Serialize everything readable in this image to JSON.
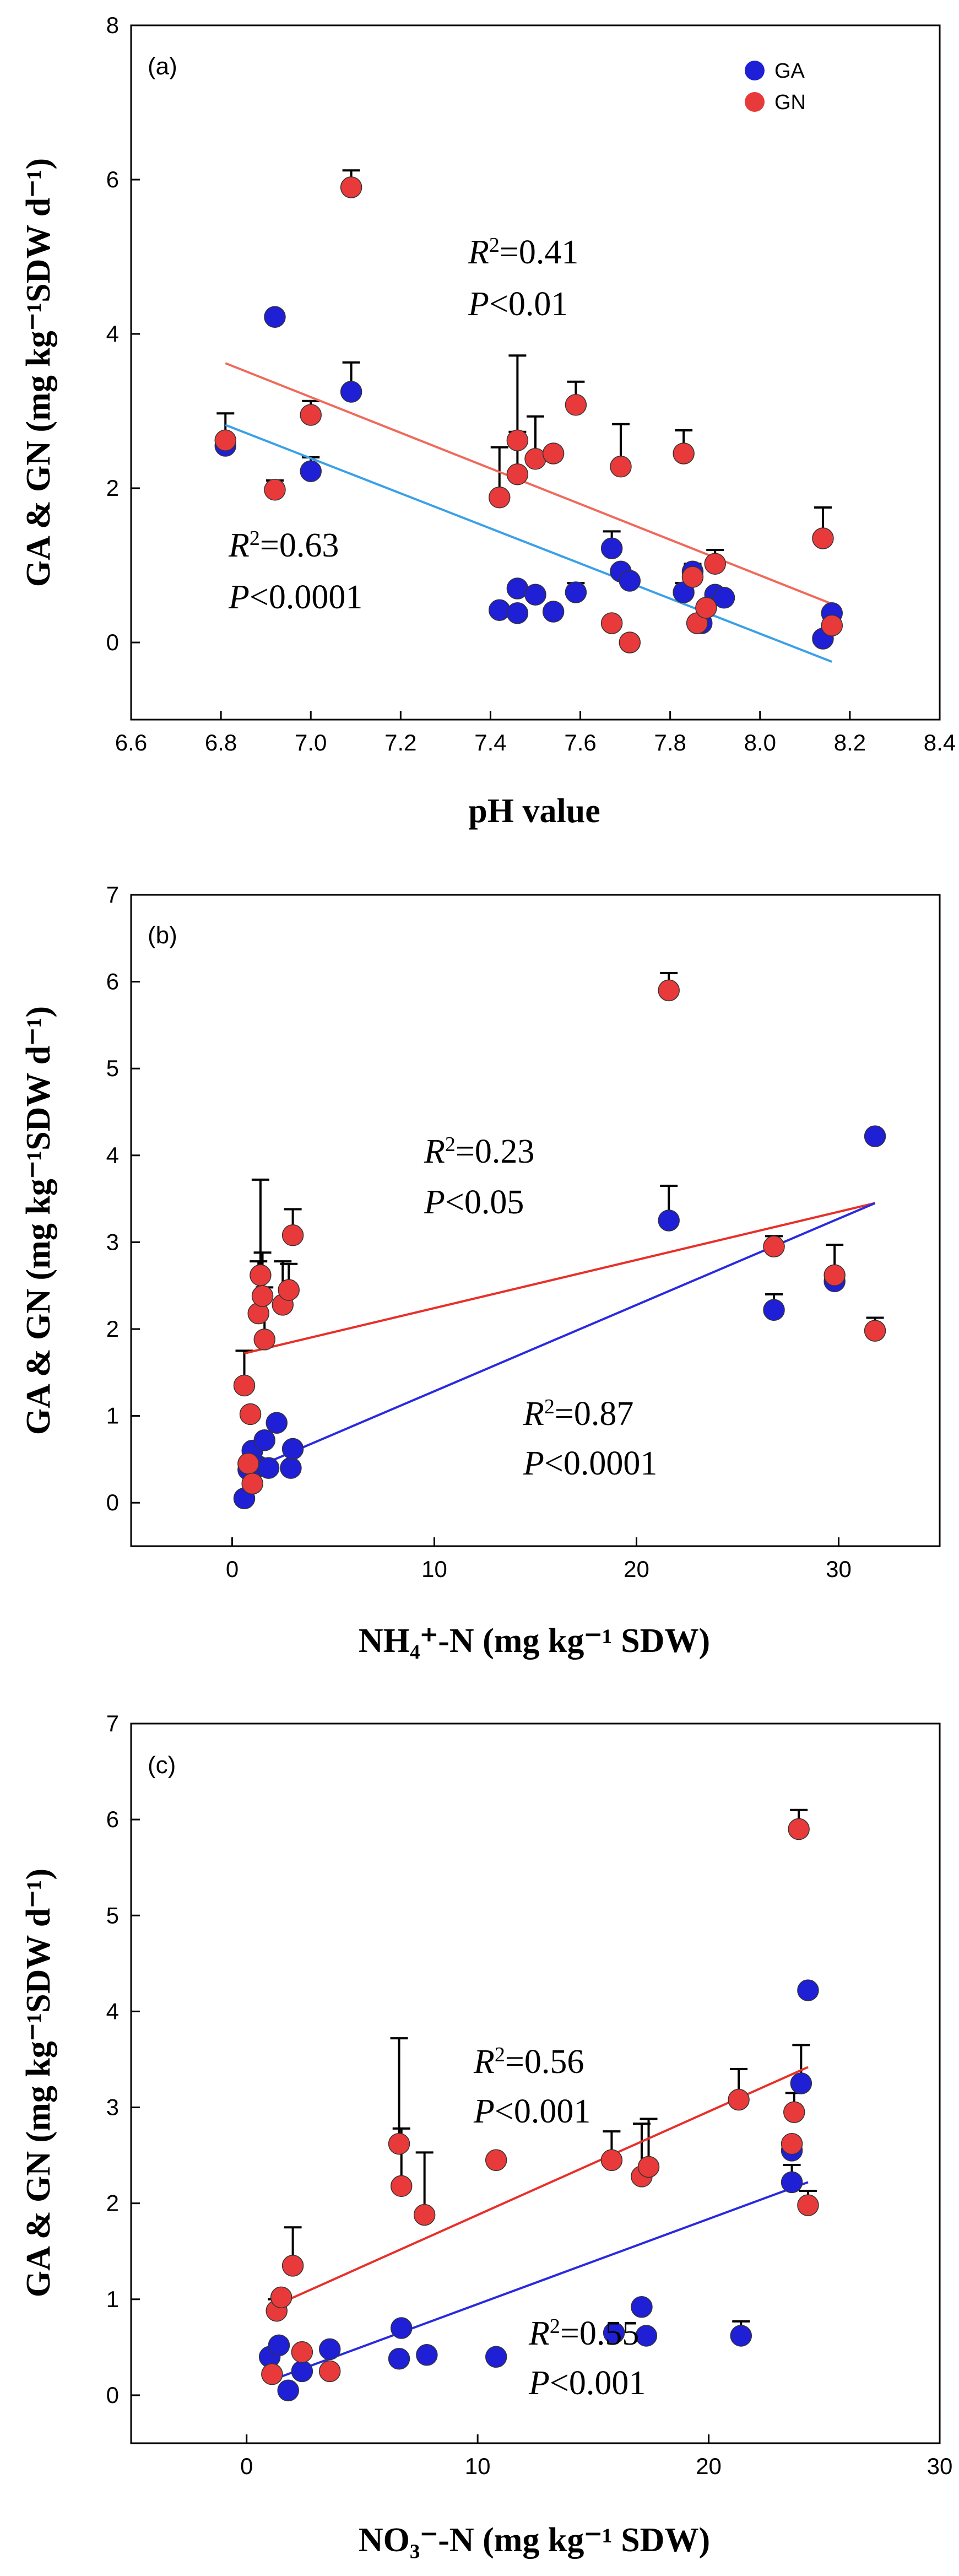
{
  "chart_data": [
    {
      "type": "scatter",
      "panel": "(a)",
      "xlabel": "pH value",
      "ylabel": "GA & GN (mg kg⁻¹SDW d⁻¹)",
      "xlim": [
        6.6,
        8.4
      ],
      "ylim": [
        -1,
        8
      ],
      "xticks": [
        "6.6",
        "6.8",
        "7.0",
        "7.2",
        "7.4",
        "7.6",
        "7.8",
        "8.0",
        "8.2",
        "8.4"
      ],
      "yticks": [
        "0",
        "2",
        "4",
        "6",
        "8"
      ],
      "legend": [
        {
          "name": "GA",
          "color": "#1f1fd6"
        },
        {
          "name": "GN",
          "color": "#e83a3a"
        }
      ],
      "legend_position": "top-right",
      "series": [
        {
          "name": "GA",
          "color": "#1f1fd6",
          "points": [
            {
              "x": 6.81,
              "y": 2.55,
              "err": 0.0
            },
            {
              "x": 6.92,
              "y": 4.22,
              "err": 0.0
            },
            {
              "x": 7.0,
              "y": 2.22,
              "err": 0.18
            },
            {
              "x": 7.09,
              "y": 3.25,
              "err": 0.38
            },
            {
              "x": 7.42,
              "y": 0.42,
              "err": 0.0
            },
            {
              "x": 7.46,
              "y": 0.38,
              "err": 0.0
            },
            {
              "x": 7.46,
              "y": 0.7,
              "err": 0.0
            },
            {
              "x": 7.5,
              "y": 0.62,
              "err": 0.0
            },
            {
              "x": 7.54,
              "y": 0.4,
              "err": 0.0
            },
            {
              "x": 7.59,
              "y": 0.65,
              "err": 0.12
            },
            {
              "x": 7.67,
              "y": 1.22,
              "err": 0.22
            },
            {
              "x": 7.69,
              "y": 0.92,
              "err": 0.0
            },
            {
              "x": 7.71,
              "y": 0.8,
              "err": 0.0
            },
            {
              "x": 7.83,
              "y": 0.65,
              "err": 0.12
            },
            {
              "x": 7.85,
              "y": 0.92,
              "err": 0.1
            },
            {
              "x": 7.87,
              "y": 0.25,
              "err": 0.0
            },
            {
              "x": 7.9,
              "y": 0.62,
              "err": 0.0
            },
            {
              "x": 7.92,
              "y": 0.58,
              "err": 0.0
            },
            {
              "x": 8.14,
              "y": 0.05,
              "err": 0.0
            },
            {
              "x": 8.16,
              "y": 0.38,
              "err": 0.0
            }
          ]
        },
        {
          "name": "GN",
          "color": "#e83a3a",
          "points": [
            {
              "x": 6.81,
              "y": 2.62,
              "err": 0.35
            },
            {
              "x": 6.92,
              "y": 1.98,
              "err": 0.12
            },
            {
              "x": 7.0,
              "y": 2.95,
              "err": 0.18
            },
            {
              "x": 7.09,
              "y": 5.9,
              "err": 0.22
            },
            {
              "x": 7.42,
              "y": 1.88,
              "err": 0.65
            },
            {
              "x": 7.46,
              "y": 2.62,
              "err": 1.1
            },
            {
              "x": 7.46,
              "y": 2.18,
              "err": 0.55
            },
            {
              "x": 7.5,
              "y": 2.38,
              "err": 0.55
            },
            {
              "x": 7.54,
              "y": 2.45,
              "err": 0.0
            },
            {
              "x": 7.59,
              "y": 3.08,
              "err": 0.3
            },
            {
              "x": 7.67,
              "y": 0.25,
              "err": 0.0
            },
            {
              "x": 7.69,
              "y": 2.28,
              "err": 0.55
            },
            {
              "x": 7.71,
              "y": 0.0,
              "err": 0.0
            },
            {
              "x": 7.83,
              "y": 2.45,
              "err": 0.3
            },
            {
              "x": 7.85,
              "y": 0.85,
              "err": 0.0
            },
            {
              "x": 7.86,
              "y": 0.25,
              "err": 0.0
            },
            {
              "x": 7.88,
              "y": 0.45,
              "err": 0.0
            },
            {
              "x": 7.9,
              "y": 1.02,
              "err": 0.18
            },
            {
              "x": 8.14,
              "y": 1.35,
              "err": 0.4
            },
            {
              "x": 8.16,
              "y": 0.22,
              "err": 0.0
            }
          ]
        }
      ],
      "fits": [
        {
          "name": "GN fit",
          "color": "#f06a5a",
          "x": [
            6.81,
            8.16
          ],
          "y": [
            3.62,
            0.5
          ]
        },
        {
          "name": "GA fit",
          "color": "#3aa0e8",
          "x": [
            6.81,
            8.16
          ],
          "y": [
            2.82,
            -0.25
          ]
        }
      ],
      "annotations": [
        {
          "r2": "=0.41",
          "p": "<0.01",
          "series": "GN"
        },
        {
          "r2": "=0.63",
          "p": "<0.0001",
          "series": "GA"
        }
      ]
    },
    {
      "type": "scatter",
      "panel": "(b)",
      "xlabel": "NH₄⁺-N (mg kg⁻¹ SDW)",
      "ylabel": "GA & GN (mg kg⁻¹SDW d⁻¹)",
      "xlim": [
        -5,
        35
      ],
      "ylim": [
        -0.5,
        7
      ],
      "xticks": [
        "0",
        "10",
        "20",
        "30"
      ],
      "yticks": [
        "0",
        "1",
        "2",
        "3",
        "4",
        "5",
        "6",
        "7"
      ],
      "series": [
        {
          "name": "GA",
          "color": "#1f1fd6",
          "points": [
            {
              "x": 0.6,
              "y": 0.05,
              "err": 0.0
            },
            {
              "x": 0.8,
              "y": 0.38,
              "err": 0.0
            },
            {
              "x": 1.0,
              "y": 0.6,
              "err": 0.0
            },
            {
              "x": 1.3,
              "y": 0.42,
              "err": 0.0
            },
            {
              "x": 1.6,
              "y": 0.72,
              "err": 0.0
            },
            {
              "x": 1.8,
              "y": 0.4,
              "err": 0.0
            },
            {
              "x": 2.2,
              "y": 0.92,
              "err": 0.0
            },
            {
              "x": 2.9,
              "y": 0.4,
              "err": 0.0
            },
            {
              "x": 3.0,
              "y": 0.62,
              "err": 0.0
            },
            {
              "x": 21.6,
              "y": 3.25,
              "err": 0.4
            },
            {
              "x": 26.8,
              "y": 2.22,
              "err": 0.18
            },
            {
              "x": 29.8,
              "y": 2.55,
              "err": 0.0
            },
            {
              "x": 31.8,
              "y": 4.22,
              "err": 0.0
            }
          ]
        },
        {
          "name": "GN",
          "color": "#e83a3a",
          "points": [
            {
              "x": 0.6,
              "y": 1.35,
              "err": 0.4
            },
            {
              "x": 0.8,
              "y": 0.45,
              "err": 0.0
            },
            {
              "x": 0.9,
              "y": 1.02,
              "err": 0.0
            },
            {
              "x": 1.0,
              "y": 0.22,
              "err": 0.0
            },
            {
              "x": 1.3,
              "y": 2.18,
              "err": 0.6
            },
            {
              "x": 1.4,
              "y": 2.62,
              "err": 1.1
            },
            {
              "x": 1.5,
              "y": 2.38,
              "err": 0.5
            },
            {
              "x": 1.6,
              "y": 1.88,
              "err": 0.6
            },
            {
              "x": 2.5,
              "y": 2.28,
              "err": 0.5
            },
            {
              "x": 2.8,
              "y": 2.45,
              "err": 0.3
            },
            {
              "x": 3.0,
              "y": 3.08,
              "err": 0.3
            },
            {
              "x": 21.6,
              "y": 5.9,
              "err": 0.2
            },
            {
              "x": 26.8,
              "y": 2.95,
              "err": 0.12
            },
            {
              "x": 29.8,
              "y": 2.62,
              "err": 0.35
            },
            {
              "x": 31.8,
              "y": 1.98,
              "err": 0.15
            }
          ]
        }
      ],
      "fits": [
        {
          "name": "GN fit",
          "color": "#e8302a",
          "x": [
            0.6,
            31.8
          ],
          "y": [
            1.72,
            3.45
          ]
        },
        {
          "name": "GA fit",
          "color": "#2a2ae0",
          "x": [
            0.6,
            31.8
          ],
          "y": [
            0.35,
            3.45
          ]
        }
      ],
      "annotations": [
        {
          "r2": "=0.23",
          "p": "<0.05",
          "series": "GN"
        },
        {
          "r2": "=0.87",
          "p": "<0.0001",
          "series": "GA"
        }
      ]
    },
    {
      "type": "scatter",
      "panel": "(c)",
      "xlabel": "NO₃⁻-N (mg kg⁻¹ SDW)",
      "ylabel": "GA & GN (mg kg⁻¹SDW d⁻¹)",
      "xlim": [
        -5,
        30
      ],
      "ylim": [
        -0.5,
        7
      ],
      "xticks": [
        "0",
        "10",
        "20",
        "30"
      ],
      "yticks": [
        "0",
        "1",
        "2",
        "3",
        "4",
        "5",
        "6",
        "7"
      ],
      "series": [
        {
          "name": "GA",
          "color": "#1f1fd6",
          "points": [
            {
              "x": 1.0,
              "y": 0.4,
              "err": 0.0
            },
            {
              "x": 1.4,
              "y": 0.52,
              "err": 0.0
            },
            {
              "x": 1.8,
              "y": 0.05,
              "err": 0.0
            },
            {
              "x": 2.4,
              "y": 0.25,
              "err": 0.0
            },
            {
              "x": 3.6,
              "y": 0.48,
              "err": 0.0
            },
            {
              "x": 6.6,
              "y": 0.38,
              "err": 0.0
            },
            {
              "x": 6.7,
              "y": 0.7,
              "err": 0.0
            },
            {
              "x": 7.8,
              "y": 0.42,
              "err": 0.0
            },
            {
              "x": 10.8,
              "y": 0.4,
              "err": 0.0
            },
            {
              "x": 15.9,
              "y": 0.65,
              "err": 0.0
            },
            {
              "x": 17.1,
              "y": 0.92,
              "err": 0.0
            },
            {
              "x": 17.3,
              "y": 0.62,
              "err": 0.0
            },
            {
              "x": 21.4,
              "y": 0.62,
              "err": 0.15
            },
            {
              "x": 23.6,
              "y": 2.55,
              "err": 0.0
            },
            {
              "x": 23.6,
              "y": 2.22,
              "err": 0.18
            },
            {
              "x": 24.0,
              "y": 3.25,
              "err": 0.4
            },
            {
              "x": 24.3,
              "y": 4.22,
              "err": 0.0
            }
          ]
        },
        {
          "name": "GN",
          "color": "#e83a3a",
          "points": [
            {
              "x": 1.1,
              "y": 0.22,
              "err": 0.0
            },
            {
              "x": 1.3,
              "y": 0.88,
              "err": 0.12
            },
            {
              "x": 1.5,
              "y": 1.02,
              "err": 0.0
            },
            {
              "x": 2.0,
              "y": 1.35,
              "err": 0.4
            },
            {
              "x": 2.4,
              "y": 0.45,
              "err": 0.0
            },
            {
              "x": 3.6,
              "y": 0.25,
              "err": 0.0
            },
            {
              "x": 6.6,
              "y": 2.62,
              "err": 1.1
            },
            {
              "x": 6.7,
              "y": 2.18,
              "err": 0.6
            },
            {
              "x": 7.7,
              "y": 1.88,
              "err": 0.65
            },
            {
              "x": 10.8,
              "y": 2.45,
              "err": 0.0
            },
            {
              "x": 15.8,
              "y": 2.45,
              "err": 0.3
            },
            {
              "x": 17.1,
              "y": 2.28,
              "err": 0.55
            },
            {
              "x": 17.4,
              "y": 2.38,
              "err": 0.5
            },
            {
              "x": 21.3,
              "y": 3.08,
              "err": 0.32
            },
            {
              "x": 23.6,
              "y": 2.62,
              "err": 0.0
            },
            {
              "x": 23.7,
              "y": 2.95,
              "err": 0.2
            },
            {
              "x": 23.9,
              "y": 5.9,
              "err": 0.2
            },
            {
              "x": 24.3,
              "y": 1.98,
              "err": 0.15
            }
          ]
        }
      ],
      "fits": [
        {
          "name": "GN fit",
          "color": "#e8302a",
          "x": [
            1.1,
            24.3
          ],
          "y": [
            0.92,
            3.42
          ]
        },
        {
          "name": "GA fit",
          "color": "#2a2ae0",
          "x": [
            1.0,
            24.3
          ],
          "y": [
            0.15,
            2.22
          ]
        }
      ],
      "annotations": [
        {
          "r2": "=0.56",
          "p": "<0.001",
          "series": "GN"
        },
        {
          "r2": "=0.55",
          "p": "<0.001",
          "series": "GA"
        }
      ]
    }
  ]
}
